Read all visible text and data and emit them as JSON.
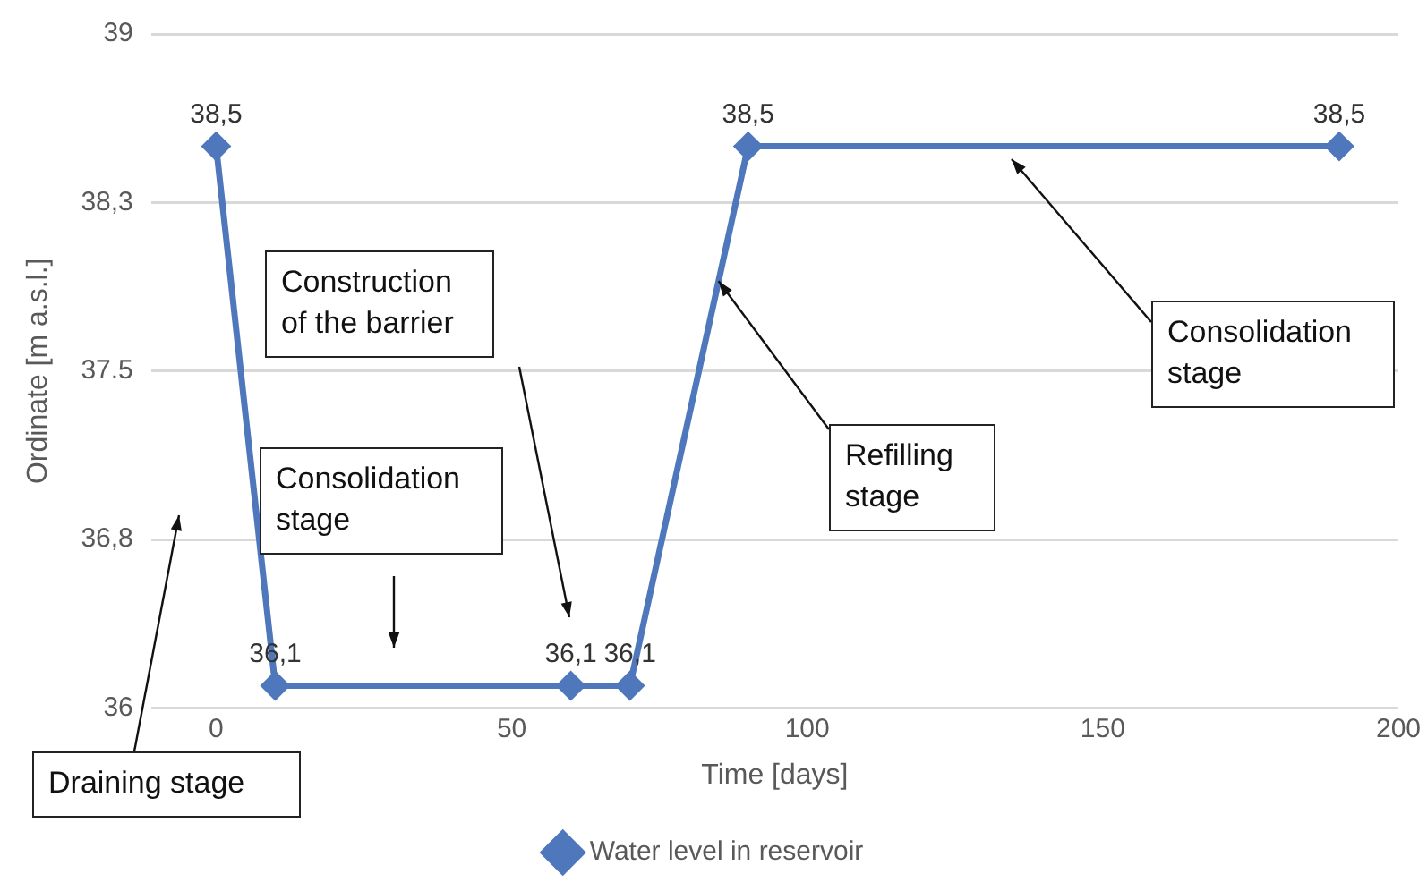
{
  "chart_data": {
    "type": "line",
    "xlabel": "Time [days]",
    "ylabel": "Ordinate [m a.s.l.]",
    "x": [
      0,
      10,
      60,
      70,
      90,
      190
    ],
    "series": [
      {
        "name": "Water level in reservoir",
        "color": "#4f78bc",
        "values": [
          38.5,
          36.1,
          36.1,
          36.1,
          38.5,
          38.5
        ],
        "value_labels": [
          "38,5",
          "36,1",
          "36,1",
          "36,1",
          "38,5",
          "38,5"
        ]
      }
    ],
    "xlim": [
      -11,
      200
    ],
    "xticks": [
      0,
      50,
      100,
      150,
      200
    ],
    "ylim": [
      36,
      39
    ],
    "yticks": [
      36,
      {
        "value": 36.75,
        "label": "36,8"
      },
      37.5,
      {
        "value": 38.25,
        "label": "38,3"
      },
      39
    ],
    "grid": "y",
    "legend": "bottom",
    "marker": "diamond",
    "line_style": "solid",
    "annotations": [
      "Construction of the barrier",
      "Consolidation stage",
      "Draining stage",
      {
        "text": "Refilling stage",
        "x": 85,
        "y": 37.9
      },
      "Consolidation stage"
    ]
  }
}
